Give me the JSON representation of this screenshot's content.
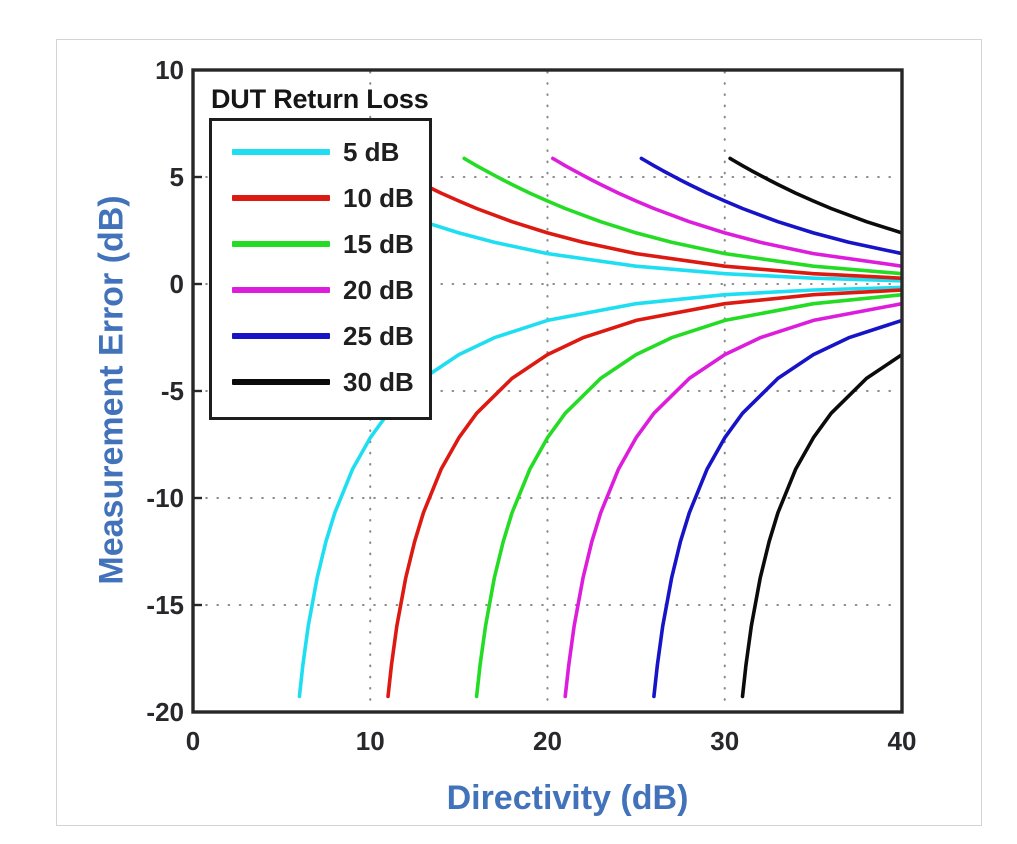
{
  "card": {
    "background": "#ffffff",
    "border_color": "#d4d4d4"
  },
  "chart_data": {
    "type": "line",
    "title": "",
    "xlabel": "Directivity (dB)",
    "ylabel": "Measurement Error (dB)",
    "xlim": [
      0,
      40
    ],
    "ylim": [
      -20,
      10
    ],
    "x_ticks": [
      0,
      10,
      20,
      30,
      40
    ],
    "y_ticks": [
      10,
      5,
      0,
      -5,
      -10,
      -15,
      -20
    ],
    "grid": {
      "style": "dotted",
      "color": "#8a8a8a",
      "x_lines": [
        10,
        20,
        30
      ],
      "y_lines": [
        5,
        0,
        -5,
        -10,
        -15
      ]
    },
    "axis_label_color": "#4273ba",
    "tick_label_color": "#27272c",
    "plot_border_color": "#272727",
    "legend": {
      "title": "DUT Return Loss",
      "position": "upper-left"
    },
    "series": [
      {
        "name": "5 dB",
        "return_loss_db": 5,
        "color": "#1fdef2",
        "upper": [
          [
            5.3,
            5.87
          ],
          [
            5.5,
            5.77
          ],
          [
            6,
            5.53
          ],
          [
            6.5,
            5.3
          ],
          [
            7,
            5.08
          ],
          [
            7.5,
            4.86
          ],
          [
            8,
            4.65
          ],
          [
            9,
            4.25
          ],
          [
            10,
            3.88
          ],
          [
            11,
            3.53
          ],
          [
            13,
            2.91
          ],
          [
            15,
            2.39
          ],
          [
            17,
            1.95
          ],
          [
            20,
            1.42
          ],
          [
            25,
            0.83
          ],
          [
            30,
            0.48
          ],
          [
            35,
            0.27
          ],
          [
            40,
            0.15
          ]
        ],
        "lower": [
          [
            6,
            -19.27
          ],
          [
            6.2,
            -17.79
          ],
          [
            6.5,
            -15.99
          ],
          [
            7,
            -13.74
          ],
          [
            7.5,
            -12.04
          ],
          [
            8,
            -10.69
          ],
          [
            9,
            -8.66
          ],
          [
            10,
            -7.18
          ],
          [
            11,
            -6.04
          ],
          [
            13,
            -4.41
          ],
          [
            15,
            -3.3
          ],
          [
            17,
            -2.51
          ],
          [
            20,
            -1.7
          ],
          [
            25,
            -0.92
          ],
          [
            30,
            -0.5
          ],
          [
            35,
            -0.28
          ],
          [
            40,
            -0.16
          ]
        ]
      },
      {
        "name": "10 dB",
        "return_loss_db": 10,
        "color": "#dd1a12",
        "upper": [
          [
            10.3,
            5.87
          ],
          [
            10.5,
            5.77
          ],
          [
            11,
            5.53
          ],
          [
            11.5,
            5.3
          ],
          [
            12,
            5.08
          ],
          [
            12.5,
            4.86
          ],
          [
            13,
            4.65
          ],
          [
            14,
            4.25
          ],
          [
            15,
            3.88
          ],
          [
            16,
            3.53
          ],
          [
            18,
            2.91
          ],
          [
            20,
            2.39
          ],
          [
            22,
            1.95
          ],
          [
            25,
            1.42
          ],
          [
            30,
            0.83
          ],
          [
            35,
            0.48
          ],
          [
            40,
            0.27
          ]
        ],
        "lower": [
          [
            11,
            -19.27
          ],
          [
            11.2,
            -17.79
          ],
          [
            11.5,
            -15.99
          ],
          [
            12,
            -13.74
          ],
          [
            12.5,
            -12.04
          ],
          [
            13,
            -10.69
          ],
          [
            14,
            -8.66
          ],
          [
            15,
            -7.18
          ],
          [
            16,
            -6.04
          ],
          [
            18,
            -4.41
          ],
          [
            20,
            -3.3
          ],
          [
            22,
            -2.51
          ],
          [
            25,
            -1.7
          ],
          [
            30,
            -0.92
          ],
          [
            35,
            -0.5
          ],
          [
            40,
            -0.28
          ]
        ]
      },
      {
        "name": "15 dB",
        "return_loss_db": 15,
        "color": "#25dc25",
        "upper": [
          [
            15.3,
            5.87
          ],
          [
            15.5,
            5.77
          ],
          [
            16,
            5.53
          ],
          [
            16.5,
            5.3
          ],
          [
            17,
            5.08
          ],
          [
            17.5,
            4.86
          ],
          [
            18,
            4.65
          ],
          [
            19,
            4.25
          ],
          [
            20,
            3.88
          ],
          [
            21,
            3.53
          ],
          [
            23,
            2.91
          ],
          [
            25,
            2.39
          ],
          [
            27,
            1.95
          ],
          [
            30,
            1.42
          ],
          [
            35,
            0.83
          ],
          [
            40,
            0.48
          ]
        ],
        "lower": [
          [
            16,
            -19.27
          ],
          [
            16.2,
            -17.79
          ],
          [
            16.5,
            -15.99
          ],
          [
            17,
            -13.74
          ],
          [
            17.5,
            -12.04
          ],
          [
            18,
            -10.69
          ],
          [
            19,
            -8.66
          ],
          [
            20,
            -7.18
          ],
          [
            21,
            -6.04
          ],
          [
            23,
            -4.41
          ],
          [
            25,
            -3.3
          ],
          [
            27,
            -2.51
          ],
          [
            30,
            -1.7
          ],
          [
            35,
            -0.92
          ],
          [
            40,
            -0.5
          ]
        ]
      },
      {
        "name": "20 dB",
        "return_loss_db": 20,
        "color": "#dc1edc",
        "upper": [
          [
            20.3,
            5.87
          ],
          [
            20.5,
            5.77
          ],
          [
            21,
            5.53
          ],
          [
            21.5,
            5.3
          ],
          [
            22,
            5.08
          ],
          [
            22.5,
            4.86
          ],
          [
            23,
            4.65
          ],
          [
            24,
            4.25
          ],
          [
            25,
            3.88
          ],
          [
            26,
            3.53
          ],
          [
            28,
            2.91
          ],
          [
            30,
            2.39
          ],
          [
            32,
            1.95
          ],
          [
            35,
            1.42
          ],
          [
            40,
            0.83
          ]
        ],
        "lower": [
          [
            21,
            -19.27
          ],
          [
            21.2,
            -17.79
          ],
          [
            21.5,
            -15.99
          ],
          [
            22,
            -13.74
          ],
          [
            22.5,
            -12.04
          ],
          [
            23,
            -10.69
          ],
          [
            24,
            -8.66
          ],
          [
            25,
            -7.18
          ],
          [
            26,
            -6.04
          ],
          [
            28,
            -4.41
          ],
          [
            30,
            -3.3
          ],
          [
            32,
            -2.51
          ],
          [
            35,
            -1.7
          ],
          [
            40,
            -0.92
          ]
        ]
      },
      {
        "name": "25 dB",
        "return_loss_db": 25,
        "color": "#1713c6",
        "upper": [
          [
            25.3,
            5.87
          ],
          [
            25.5,
            5.77
          ],
          [
            26,
            5.53
          ],
          [
            26.5,
            5.3
          ],
          [
            27,
            5.08
          ],
          [
            27.5,
            4.86
          ],
          [
            28,
            4.65
          ],
          [
            29,
            4.25
          ],
          [
            30,
            3.88
          ],
          [
            31,
            3.53
          ],
          [
            33,
            2.91
          ],
          [
            35,
            2.39
          ],
          [
            37,
            1.95
          ],
          [
            40,
            1.42
          ]
        ],
        "lower": [
          [
            26,
            -19.27
          ],
          [
            26.2,
            -17.79
          ],
          [
            26.5,
            -15.99
          ],
          [
            27,
            -13.74
          ],
          [
            27.5,
            -12.04
          ],
          [
            28,
            -10.69
          ],
          [
            29,
            -8.66
          ],
          [
            30,
            -7.18
          ],
          [
            31,
            -6.04
          ],
          [
            33,
            -4.41
          ],
          [
            35,
            -3.3
          ],
          [
            37,
            -2.51
          ],
          [
            40,
            -1.7
          ]
        ]
      },
      {
        "name": "30 dB",
        "return_loss_db": 30,
        "color": "#0b0b0b",
        "upper": [
          [
            30.3,
            5.87
          ],
          [
            30.5,
            5.77
          ],
          [
            31,
            5.53
          ],
          [
            31.5,
            5.3
          ],
          [
            32,
            5.08
          ],
          [
            32.5,
            4.86
          ],
          [
            33,
            4.65
          ],
          [
            34,
            4.25
          ],
          [
            35,
            3.88
          ],
          [
            36,
            3.53
          ],
          [
            38,
            2.91
          ],
          [
            40,
            2.39
          ]
        ],
        "lower": [
          [
            31,
            -19.27
          ],
          [
            31.2,
            -17.79
          ],
          [
            31.5,
            -15.99
          ],
          [
            32,
            -13.74
          ],
          [
            32.5,
            -12.04
          ],
          [
            33,
            -10.69
          ],
          [
            34,
            -8.66
          ],
          [
            35,
            -7.18
          ],
          [
            36,
            -6.04
          ],
          [
            38,
            -4.41
          ],
          [
            40,
            -3.3
          ]
        ]
      }
    ]
  }
}
